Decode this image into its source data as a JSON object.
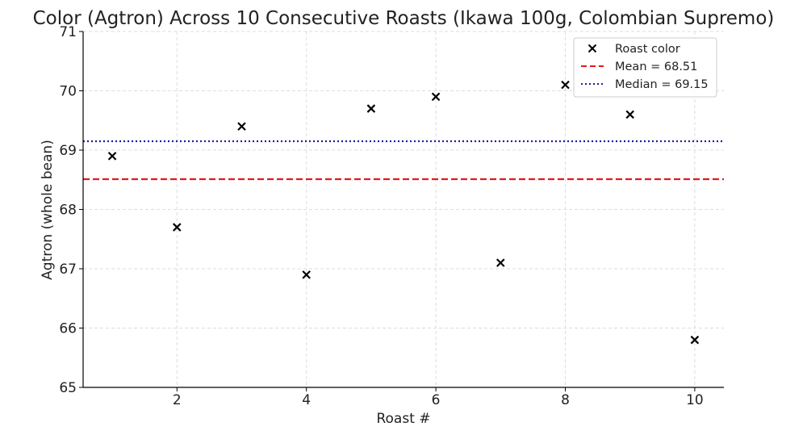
{
  "chart_data": {
    "type": "scatter",
    "title": "Color (Agtron) Across 10 Consecutive Roasts (Ikawa 100g, Colombian Supremo)",
    "xlabel": "Roast #",
    "ylabel": "Agtron (whole bean)",
    "xlim": [
      0.55,
      10.45
    ],
    "ylim": [
      65,
      71
    ],
    "xticks": [
      2,
      4,
      6,
      8,
      10
    ],
    "yticks": [
      65,
      66,
      67,
      68,
      69,
      70,
      71
    ],
    "grid": true,
    "legend_position": "top-right",
    "series": [
      {
        "name": "Roast color",
        "marker": "x",
        "color": "#000000",
        "x": [
          1,
          2,
          3,
          4,
          5,
          6,
          7,
          8,
          9,
          10
        ],
        "y": [
          68.9,
          67.7,
          69.4,
          66.9,
          69.7,
          69.9,
          67.1,
          70.1,
          69.6,
          65.8
        ]
      }
    ],
    "reference_lines": [
      {
        "name": "Mean = 68.51",
        "value": 68.51,
        "style": "dashed",
        "color": "#e41a1c"
      },
      {
        "name": "Median = 69.15",
        "value": 69.15,
        "style": "dotted",
        "color": "#1f1fa0"
      }
    ]
  }
}
